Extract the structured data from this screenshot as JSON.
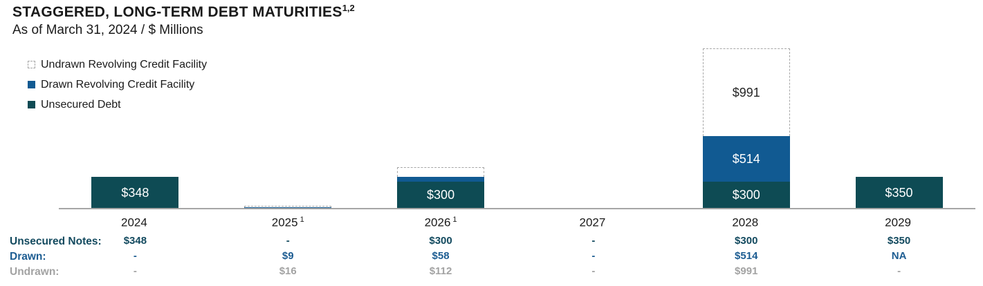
{
  "header": {
    "title": "STAGGERED, LONG-TERM DEBT MATURITIES",
    "title_superscript": "1,2",
    "subtitle": "As of March 31, 2024 / $ Millions"
  },
  "legend": {
    "items": [
      {
        "key": "undrawn",
        "label": "Undrawn Revolving Credit Facility"
      },
      {
        "key": "drawn",
        "label": "Drawn Revolving Credit Facility"
      },
      {
        "key": "unsecured",
        "label": "Unsecured Debt"
      }
    ]
  },
  "colors": {
    "unsecured": "#0e4b54",
    "drawn": "#115a92",
    "undrawn_fill": "#ffffff",
    "undrawn_border": "#a6a6a6",
    "axis_line": "#a6a6a6",
    "table_unsecured_row": "#134a5f",
    "table_drawn_row": "#1d5d92",
    "table_undrawn_row": "#a3a3a3"
  },
  "chart_data": {
    "type": "bar",
    "stacked": true,
    "title": "STAGGERED, LONG-TERM DEBT MATURITIES",
    "subtitle": "As of March 31, 2024 / $ Millions",
    "unit": "$ Millions",
    "categories": [
      "2024",
      "2025",
      "2026",
      "2027",
      "2028",
      "2029"
    ],
    "category_superscripts": [
      "",
      "1",
      "1",
      "",
      "",
      ""
    ],
    "series": [
      {
        "key": "unsecured",
        "name": "Unsecured Debt",
        "values": [
          348,
          0,
          300,
          0,
          300,
          350
        ]
      },
      {
        "key": "drawn",
        "name": "Drawn Revolving Credit Facility",
        "values": [
          0,
          9,
          58,
          0,
          514,
          0
        ]
      },
      {
        "key": "undrawn",
        "name": "Undrawn Revolving Credit Facility",
        "values": [
          0,
          16,
          112,
          0,
          991,
          0
        ]
      }
    ],
    "bar_value_labels_shown": [
      "$348",
      "$300",
      "$300",
      "$514",
      "$991",
      "$350"
    ],
    "legend_position": "top-left",
    "grid": false,
    "ylim": [
      0,
      1900
    ]
  },
  "axis": {
    "labels": [
      {
        "year": "2024",
        "sup": ""
      },
      {
        "year": "2025",
        "sup": "1"
      },
      {
        "year": "2026",
        "sup": "1"
      },
      {
        "year": "2027",
        "sup": ""
      },
      {
        "year": "2028",
        "sup": ""
      },
      {
        "year": "2029",
        "sup": ""
      }
    ]
  },
  "table": {
    "rows": [
      {
        "label": "Unsecured Notes:",
        "values": [
          "$348",
          "-",
          "$300",
          "-",
          "$300",
          "$350"
        ]
      },
      {
        "label": "Drawn:",
        "values": [
          "-",
          "$9",
          "$58",
          "-",
          "$514",
          "NA"
        ]
      },
      {
        "label": "Undrawn:",
        "values": [
          "-",
          "$16",
          "$112",
          "-",
          "$991",
          "-"
        ]
      }
    ]
  }
}
